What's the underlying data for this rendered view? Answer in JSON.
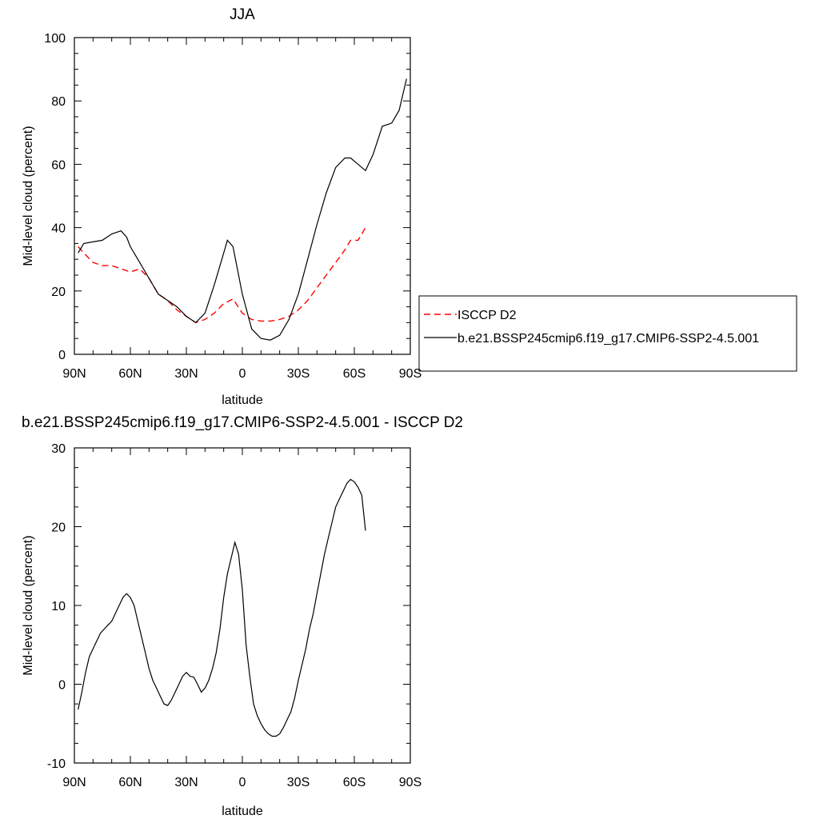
{
  "chart_data": [
    {
      "type": "line",
      "title": "JJA",
      "xlabel": "latitude",
      "ylabel": "Mid-level cloud (percent)",
      "xlim": [
        -90,
        90
      ],
      "ylim": [
        0,
        100
      ],
      "x_ticks": [
        -90,
        -60,
        -30,
        0,
        30,
        60,
        90
      ],
      "x_tick_labels": [
        "90N",
        "60N",
        "30N",
        "0",
        "30S",
        "60S",
        "90S"
      ],
      "y_ticks": [
        0,
        20,
        40,
        60,
        80,
        100
      ],
      "y_tick_labels": [
        "0",
        "20",
        "40",
        "60",
        "80",
        "100"
      ],
      "legend_placement": "right",
      "series": [
        {
          "name": "ISCCP D2",
          "color": "#ff0000",
          "dash": "dashed",
          "x": [
            -88,
            -85,
            -80,
            -75,
            -70,
            -65,
            -60,
            -55,
            -50,
            -45,
            -40,
            -35,
            -30,
            -25,
            -20,
            -15,
            -10,
            -5,
            0,
            5,
            10,
            15,
            20,
            25,
            30,
            35,
            40,
            45,
            50,
            55,
            58,
            62,
            66
          ],
          "y": [
            34,
            32,
            29,
            28,
            28,
            27,
            26,
            27,
            24,
            19,
            17,
            14,
            12,
            10,
            11,
            13,
            16,
            17.5,
            13,
            11,
            10.5,
            10.5,
            11,
            12,
            14,
            17,
            21,
            25,
            29,
            33,
            36,
            36,
            40
          ]
        },
        {
          "name": "b.e21.BSSP245cmip6.f19_g17.CMIP6-SSP2-4.5.001",
          "color": "#000000",
          "dash": "solid",
          "x": [
            -88,
            -85,
            -80,
            -75,
            -70,
            -65,
            -62,
            -60,
            -55,
            -50,
            -45,
            -40,
            -35,
            -30,
            -25,
            -20,
            -15,
            -10,
            -8,
            -5,
            0,
            5,
            10,
            15,
            20,
            25,
            30,
            35,
            40,
            45,
            50,
            55,
            58,
            62,
            66,
            70,
            75,
            80,
            84,
            88
          ],
          "y": [
            32,
            35,
            35.5,
            36,
            38,
            39,
            37,
            34,
            29,
            24,
            19,
            17,
            15,
            12,
            10,
            13,
            22,
            32,
            36,
            34,
            19,
            8,
            5,
            4.5,
            6,
            11,
            19,
            30,
            41,
            51,
            59,
            62,
            62,
            60,
            58,
            63,
            72,
            73,
            77,
            87
          ]
        }
      ]
    },
    {
      "type": "line",
      "title": "b.e21.BSSP245cmip6.f19_g17.CMIP6-SSP2-4.5.001 - ISCCP D2",
      "xlabel": "latitude",
      "ylabel": "Mid-level cloud (percent)",
      "xlim": [
        -90,
        90
      ],
      "ylim": [
        -10,
        30
      ],
      "x_ticks": [
        -90,
        -60,
        -30,
        0,
        30,
        60,
        90
      ],
      "x_tick_labels": [
        "90N",
        "60N",
        "30N",
        "0",
        "30S",
        "60S",
        "90S"
      ],
      "y_ticks": [
        -10,
        0,
        10,
        20,
        30
      ],
      "y_tick_labels": [
        "-10",
        "0",
        "10",
        "20",
        "30"
      ],
      "series": [
        {
          "color": "#000000",
          "dash": "solid",
          "x": [
            -88,
            -86,
            -84,
            -82,
            -80,
            -78,
            -76,
            -74,
            -72,
            -70,
            -68,
            -66,
            -64,
            -62,
            -60,
            -58,
            -56,
            -54,
            -52,
            -50,
            -48,
            -46,
            -44,
            -42,
            -40,
            -38,
            -36,
            -34,
            -32,
            -30,
            -28,
            -26,
            -24,
            -22,
            -20,
            -18,
            -16,
            -14,
            -12,
            -10,
            -8,
            -6,
            -4,
            -2,
            0,
            2,
            4,
            6,
            8,
            10,
            12,
            14,
            16,
            18,
            20,
            22,
            24,
            26,
            28,
            30,
            32,
            34,
            36,
            38,
            40,
            42,
            44,
            46,
            48,
            50,
            52,
            54,
            56,
            58,
            60,
            62,
            64,
            66
          ],
          "y": [
            -3.2,
            -1,
            1.5,
            3.5,
            4.5,
            5.5,
            6.5,
            7,
            7.5,
            8,
            9,
            10,
            11,
            11.5,
            11,
            10,
            8,
            6,
            4,
            2,
            0.5,
            -0.5,
            -1.5,
            -2.5,
            -2.7,
            -2,
            -1,
            0,
            1,
            1.5,
            1,
            0.9,
            0,
            -1,
            -0.5,
            0.5,
            2,
            4,
            7,
            11,
            14,
            16,
            18,
            16.5,
            12,
            5,
            1,
            -2.5,
            -4,
            -5,
            -5.8,
            -6.3,
            -6.6,
            -6.6,
            -6.3,
            -5.5,
            -4.5,
            -3.5,
            -1.8,
            0.5,
            2.5,
            4.5,
            7,
            9,
            11.5,
            14,
            16.5,
            18.5,
            20.5,
            22.5,
            23.5,
            24.5,
            25.5,
            26,
            25.7,
            25,
            24,
            19.5
          ]
        }
      ]
    }
  ]
}
